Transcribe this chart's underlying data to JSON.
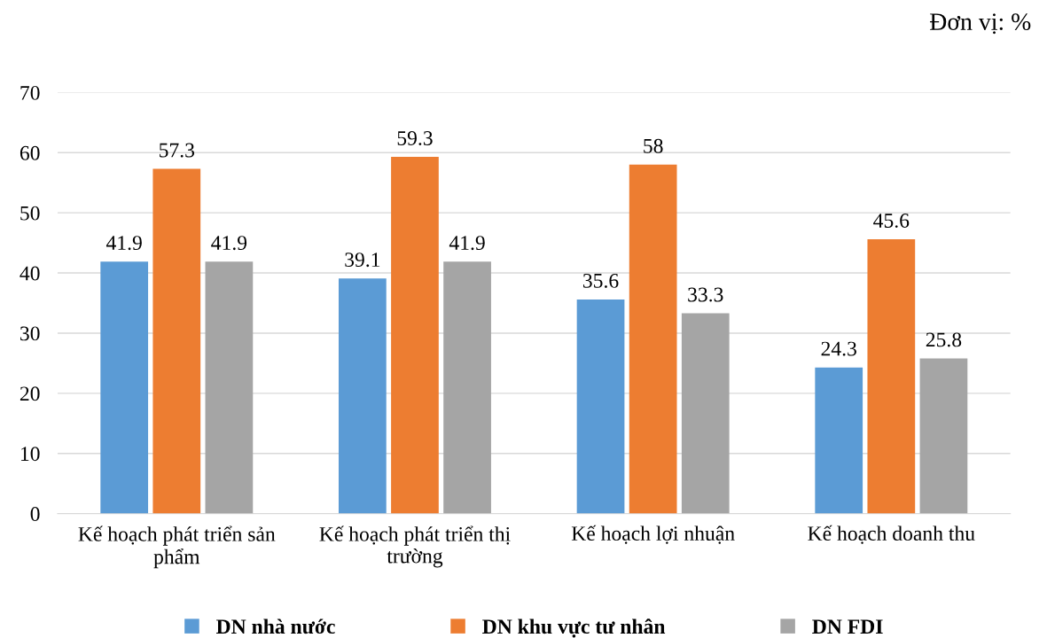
{
  "chart_data": {
    "type": "bar",
    "categories": [
      "Kế hoạch phát triển sản phẩm",
      "Kế hoạch phát triển thị trường",
      "Kế hoạch lợi nhuận",
      "Kế hoạch doanh thu"
    ],
    "series": [
      {
        "name": "DN nhà nước",
        "color": "#5b9bd5",
        "values": [
          41.9,
          39.1,
          35.6,
          24.3
        ]
      },
      {
        "name": "DN khu vực tư nhân",
        "color": "#ed7d31",
        "values": [
          57.3,
          59.3,
          58,
          45.6
        ]
      },
      {
        "name": "DN FDI",
        "color": "#a5a5a5",
        "values": [
          41.9,
          41.9,
          33.3,
          25.8
        ]
      }
    ],
    "ylim": [
      0,
      70
    ],
    "yticks": [
      0,
      10,
      20,
      30,
      40,
      50,
      60,
      70
    ],
    "grid": "y",
    "legend": "bottom",
    "data_labels": true,
    "annotations": [
      "Đơn vị: %"
    ]
  }
}
